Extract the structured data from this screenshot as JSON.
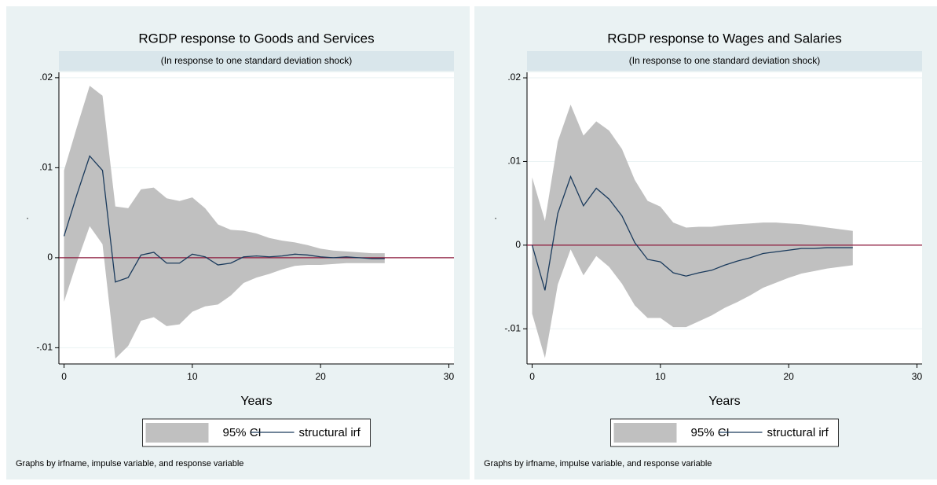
{
  "chart_data": [
    {
      "type": "line",
      "title": "RGDP response to Goods and Services",
      "subtitle": "(In response to one standard deviation shock)",
      "xlabel": "Years",
      "ylabel": ".",
      "note": "Graphs by irfname, impulse variable, and response variable",
      "x": [
        0,
        1,
        2,
        3,
        4,
        5,
        6,
        7,
        8,
        9,
        10,
        11,
        12,
        13,
        14,
        15,
        16,
        17,
        18,
        19,
        20,
        21,
        22,
        23,
        24,
        25
      ],
      "series": [
        {
          "name": "95% CI",
          "color": "#c0c0c0",
          "upper": [
            0.0097,
            0.0145,
            0.0191,
            0.018,
            0.0057,
            0.0055,
            0.0076,
            0.0078,
            0.0066,
            0.0063,
            0.0067,
            0.0055,
            0.0037,
            0.0031,
            0.003,
            0.0027,
            0.0022,
            0.0019,
            0.0017,
            0.0014,
            0.001,
            0.0008,
            0.0007,
            0.0006,
            0.0005,
            0.0005
          ],
          "lower": [
            -0.0049,
            -0.0005,
            0.0035,
            0.0015,
            -0.0112,
            -0.0098,
            -0.007,
            -0.0066,
            -0.0076,
            -0.0074,
            -0.006,
            -0.0054,
            -0.0052,
            -0.0042,
            -0.0028,
            -0.0022,
            -0.0018,
            -0.0013,
            -0.0009,
            -0.0008,
            -0.0008,
            -0.0007,
            -0.0006,
            -0.0006,
            -0.0006,
            -0.0006
          ]
        },
        {
          "name": "structural irf",
          "color": "#1a3a5c",
          "values": [
            0.0024,
            0.007,
            0.0113,
            0.0097,
            -0.0027,
            -0.0022,
            0.0003,
            0.0006,
            -0.0006,
            -0.0006,
            0.0004,
            0.0001,
            -0.0008,
            -0.0006,
            0.0001,
            0.0002,
            0.0001,
            0.0002,
            0.0004,
            0.0003,
            0.0001,
            0,
            0.0001,
            0,
            -0.0001,
            -0.0001
          ]
        }
      ],
      "reference_line": 0,
      "reference_color": "#8c1a3c",
      "xlim": [
        -0.4,
        30.4
      ],
      "xticks": [
        0,
        10,
        20,
        30
      ],
      "ylim": [
        -0.0118,
        0.0206
      ],
      "yticks": [
        {
          "value": -0.01,
          "label": "-.01"
        },
        0,
        {
          "value": 0.01,
          "label": ".01"
        },
        {
          "value": 0.02,
          "label": ".02"
        }
      ],
      "grid": true,
      "legend": "bottom"
    },
    {
      "type": "line",
      "title": "RGDP response to Wages and Salaries",
      "subtitle": "(In response to one standard deviation shock)",
      "xlabel": "Years",
      "ylabel": ".",
      "note": "Graphs by irfname, impulse variable, and response variable",
      "x": [
        0,
        1,
        2,
        3,
        4,
        5,
        6,
        7,
        8,
        9,
        10,
        11,
        12,
        13,
        14,
        15,
        16,
        17,
        18,
        19,
        20,
        21,
        22,
        23,
        24,
        25
      ],
      "series": [
        {
          "name": "95% CI",
          "color": "#c0c0c0",
          "upper": [
            0.0081,
            0.0029,
            0.0124,
            0.0168,
            0.0131,
            0.0148,
            0.0137,
            0.0115,
            0.0078,
            0.0053,
            0.0046,
            0.0027,
            0.0021,
            0.0022,
            0.0022,
            0.0024,
            0.0025,
            0.0026,
            0.0027,
            0.0027,
            0.0026,
            0.0025,
            0.0023,
            0.0021,
            0.0019,
            0.0017
          ],
          "lower": [
            -0.0082,
            -0.0135,
            -0.0047,
            -0.0005,
            -0.0036,
            -0.0013,
            -0.0026,
            -0.0046,
            -0.0072,
            -0.0087,
            -0.0087,
            -0.0098,
            -0.0098,
            -0.0091,
            -0.0084,
            -0.0075,
            -0.0068,
            -0.006,
            -0.0051,
            -0.0045,
            -0.0039,
            -0.0034,
            -0.0031,
            -0.0028,
            -0.0026,
            -0.0024
          ]
        },
        {
          "name": "structural irf",
          "color": "#1a3a5c",
          "values": [
            0,
            -0.0054,
            0.0038,
            0.0082,
            0.0047,
            0.0068,
            0.0055,
            0.0035,
            0.0003,
            -0.0017,
            -0.002,
            -0.0033,
            -0.0037,
            -0.0033,
            -0.003,
            -0.0024,
            -0.0019,
            -0.0015,
            -0.001,
            -0.0008,
            -0.0006,
            -0.0004,
            -0.0004,
            -0.0003,
            -0.0003,
            -0.0003
          ]
        }
      ],
      "reference_line": 0,
      "reference_color": "#8c1a3c",
      "xlim": [
        -0.4,
        30.4
      ],
      "xticks": [
        0,
        10,
        20,
        30
      ],
      "ylim": [
        -0.0142,
        0.02066
      ],
      "yticks": [
        {
          "value": -0.01,
          "label": "-.01"
        },
        0,
        {
          "value": 0.01,
          "label": ".01"
        },
        {
          "value": 0.02,
          "label": ".02"
        }
      ],
      "grid": true,
      "legend": "bottom"
    }
  ]
}
